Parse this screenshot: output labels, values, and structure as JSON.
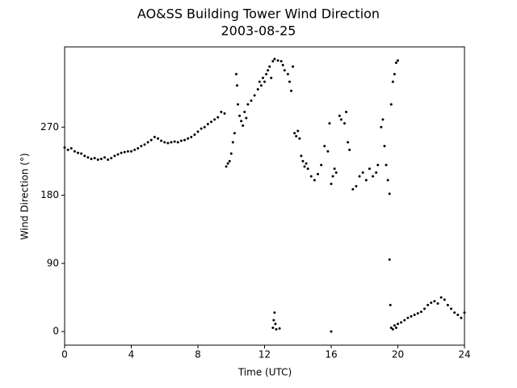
{
  "chart_data": {
    "type": "scatter",
    "title": "AO&SS Building Tower Wind Direction",
    "subtitle": "2003-08-25",
    "xlabel": "Time (UTC)",
    "ylabel": "Wind Direction (°)",
    "color": "#000000",
    "xlim": [
      0,
      24
    ],
    "ylim": [
      -18,
      376
    ],
    "xticks": [
      0,
      4,
      8,
      12,
      16,
      20,
      24
    ],
    "yticks": [
      0,
      90,
      180,
      270
    ],
    "x": [
      0,
      0.2,
      0.4,
      0.6,
      0.8,
      1,
      1.2,
      1.4,
      1.6,
      1.8,
      2,
      2.2,
      2.4,
      2.6,
      2.8,
      3,
      3.2,
      3.4,
      3.6,
      3.8,
      4,
      4.2,
      4.4,
      4.6,
      4.8,
      5,
      5.2,
      5.4,
      5.6,
      5.8,
      6,
      6.2,
      6.4,
      6.6,
      6.8,
      7,
      7.2,
      7.4,
      7.6,
      7.8,
      8,
      8.2,
      8.4,
      8.6,
      8.8,
      9,
      9.2,
      9.4,
      9.6,
      9.7,
      9.8,
      9.9,
      10,
      10.1,
      10.2,
      10.3,
      10.35,
      10.4,
      10.5,
      10.6,
      10.7,
      10.8,
      10.9,
      11,
      11.2,
      11.4,
      11.6,
      11.7,
      11.8,
      11.9,
      12,
      12.1,
      12.2,
      12.3,
      12.4,
      12.5,
      12.6,
      12.8,
      13,
      13.1,
      13.2,
      13.4,
      13.5,
      13.6,
      13.7,
      13.8,
      13.9,
      14,
      14.1,
      14.2,
      14.3,
      14.4,
      14.5,
      14.6,
      14.8,
      15,
      15.2,
      15.4,
      15.6,
      15.8,
      15.9,
      16,
      16.1,
      16.2,
      16.3,
      16.5,
      16.6,
      16.8,
      16.9,
      17,
      17.1,
      17.3,
      17.5,
      17.7,
      17.9,
      18.1,
      18.3,
      18.5,
      18.7,
      18.8,
      19,
      19.1,
      19.2,
      19.3,
      19.4,
      19.5,
      19.6,
      19.7,
      19.8,
      19.9,
      20,
      12.5,
      12.55,
      12.6,
      12.65,
      12.7,
      12.9,
      16,
      19.5,
      19.55,
      19.6,
      19.7,
      19.8,
      19.9,
      20,
      20.2,
      20.4,
      20.6,
      20.8,
      21,
      21.2,
      21.4,
      21.6,
      21.8,
      22,
      22.2,
      22.4,
      22.6,
      22.8,
      23,
      23.2,
      23.4,
      23.6,
      23.8,
      24
    ],
    "values": [
      243,
      240,
      242,
      238,
      236,
      235,
      232,
      230,
      228,
      229,
      227,
      228,
      230,
      227,
      229,
      232,
      234,
      236,
      237,
      238,
      238,
      240,
      242,
      245,
      247,
      250,
      253,
      257,
      255,
      252,
      250,
      249,
      250,
      251,
      250,
      252,
      253,
      255,
      257,
      260,
      264,
      268,
      270,
      274,
      277,
      280,
      283,
      290,
      288,
      218,
      222,
      225,
      235,
      250,
      262,
      340,
      325,
      300,
      285,
      278,
      272,
      290,
      282,
      300,
      305,
      312,
      320,
      330,
      325,
      335,
      330,
      340,
      345,
      350,
      335,
      357,
      360,
      358,
      357,
      352,
      345,
      340,
      330,
      318,
      350,
      262,
      258,
      265,
      255,
      232,
      225,
      218,
      222,
      215,
      205,
      200,
      208,
      220,
      245,
      238,
      275,
      195,
      205,
      215,
      210,
      285,
      280,
      275,
      290,
      250,
      240,
      188,
      192,
      205,
      210,
      200,
      215,
      205,
      210,
      220,
      270,
      280,
      245,
      220,
      200,
      182,
      300,
      330,
      340,
      355,
      358,
      5,
      15,
      25,
      10,
      3,
      4,
      0,
      95,
      35,
      5,
      3,
      8,
      5,
      10,
      12,
      15,
      18,
      20,
      22,
      24,
      26,
      30,
      35,
      38,
      40,
      37,
      45,
      42,
      35,
      30,
      25,
      22,
      18,
      25
    ]
  }
}
